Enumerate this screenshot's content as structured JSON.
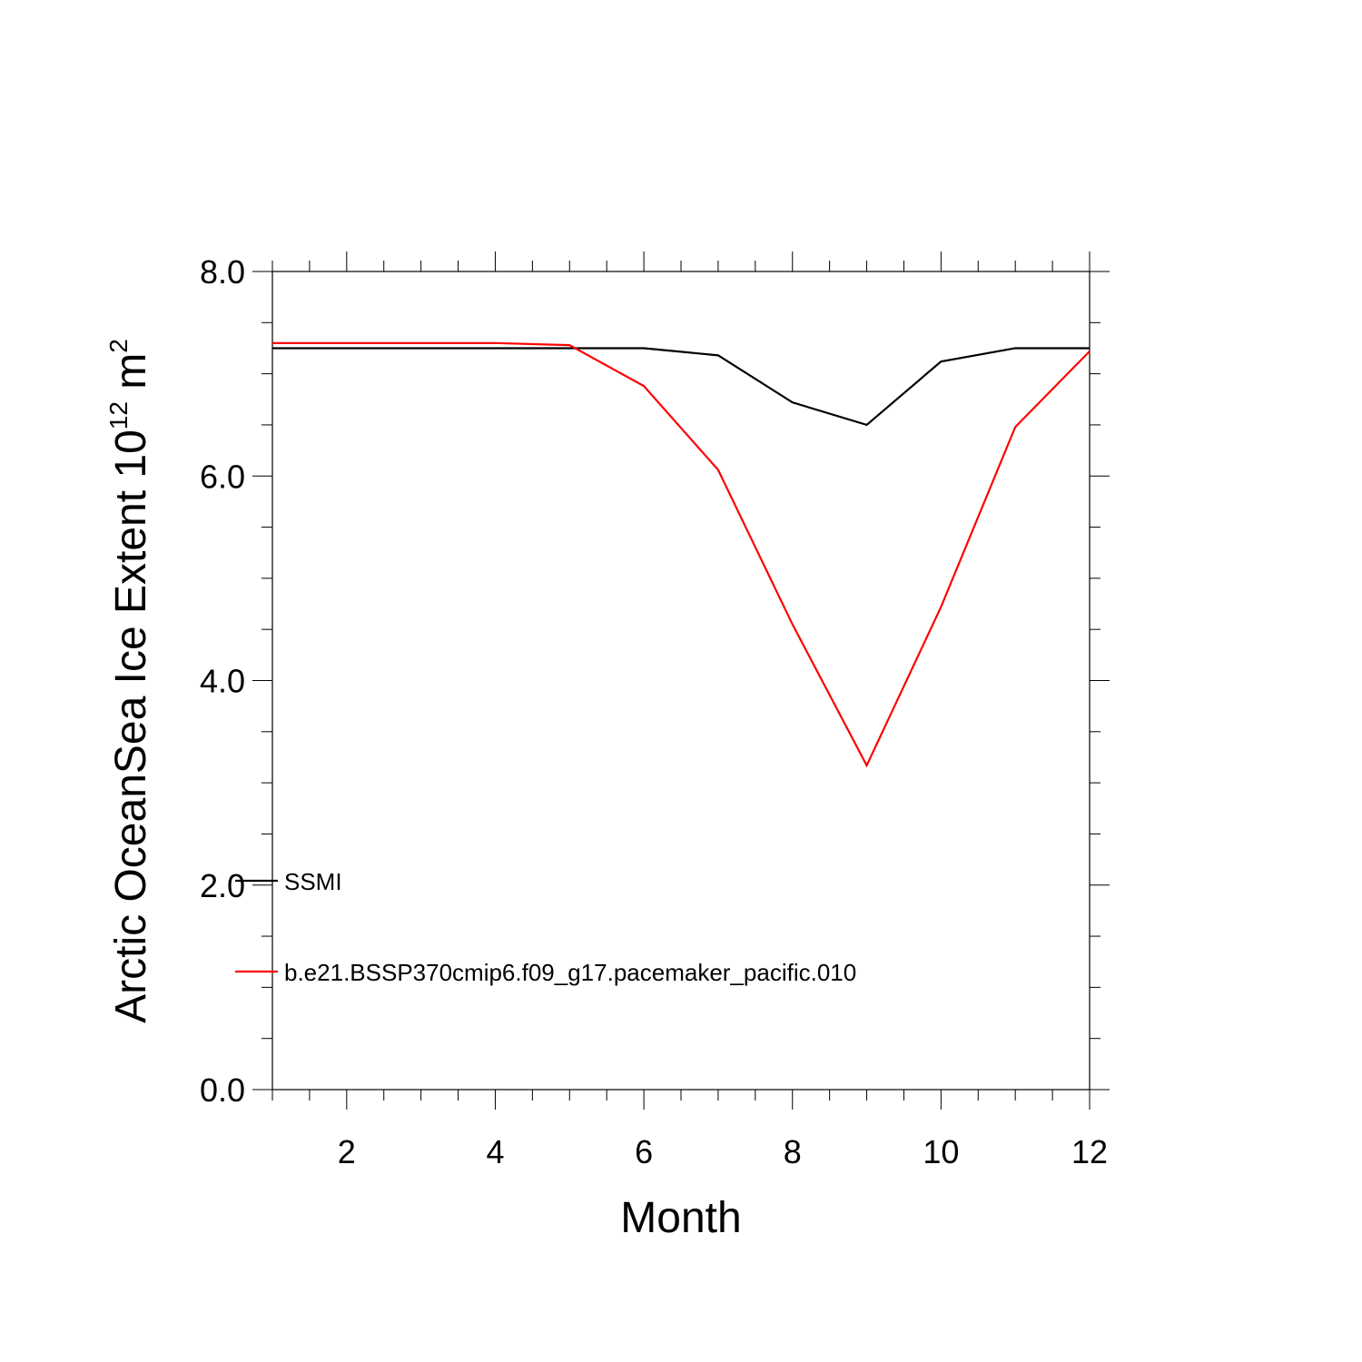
{
  "chart_data": {
    "type": "line",
    "title": "",
    "xlabel": "Month",
    "ylabel": {
      "main": "Arctic OceanSea Ice Extent 10",
      "superscript1": "12",
      "unit": " m",
      "superscript2": "2"
    },
    "xlim": [
      1,
      12
    ],
    "ylim": [
      0,
      8
    ],
    "x_ticks": [
      2,
      4,
      6,
      8,
      10,
      12
    ],
    "x_tick_labels": [
      "2",
      "4",
      "6",
      "8",
      "10",
      "12"
    ],
    "y_ticks": [
      0,
      2,
      4,
      6,
      8
    ],
    "y_tick_labels": [
      "0.0",
      "2.0",
      "4.0",
      "6.0",
      "8.0"
    ],
    "x": [
      1,
      2,
      3,
      4,
      5,
      6,
      7,
      8,
      9,
      10,
      11,
      12
    ],
    "series": [
      {
        "name": "SSMI",
        "color": "#000000",
        "values": [
          7.25,
          7.25,
          7.25,
          7.25,
          7.25,
          7.25,
          7.18,
          6.72,
          6.5,
          7.12,
          7.25,
          7.25
        ]
      },
      {
        "name": "b.e21.BSSP370cmip6.f09_g17.pacemaker_pacific.010",
        "color": "#ff0000",
        "values": [
          7.3,
          7.3,
          7.3,
          7.3,
          7.28,
          6.88,
          6.06,
          4.55,
          3.17,
          4.72,
          6.48,
          7.22
        ]
      }
    ],
    "legend_placement": "lower-left",
    "grid": false
  }
}
